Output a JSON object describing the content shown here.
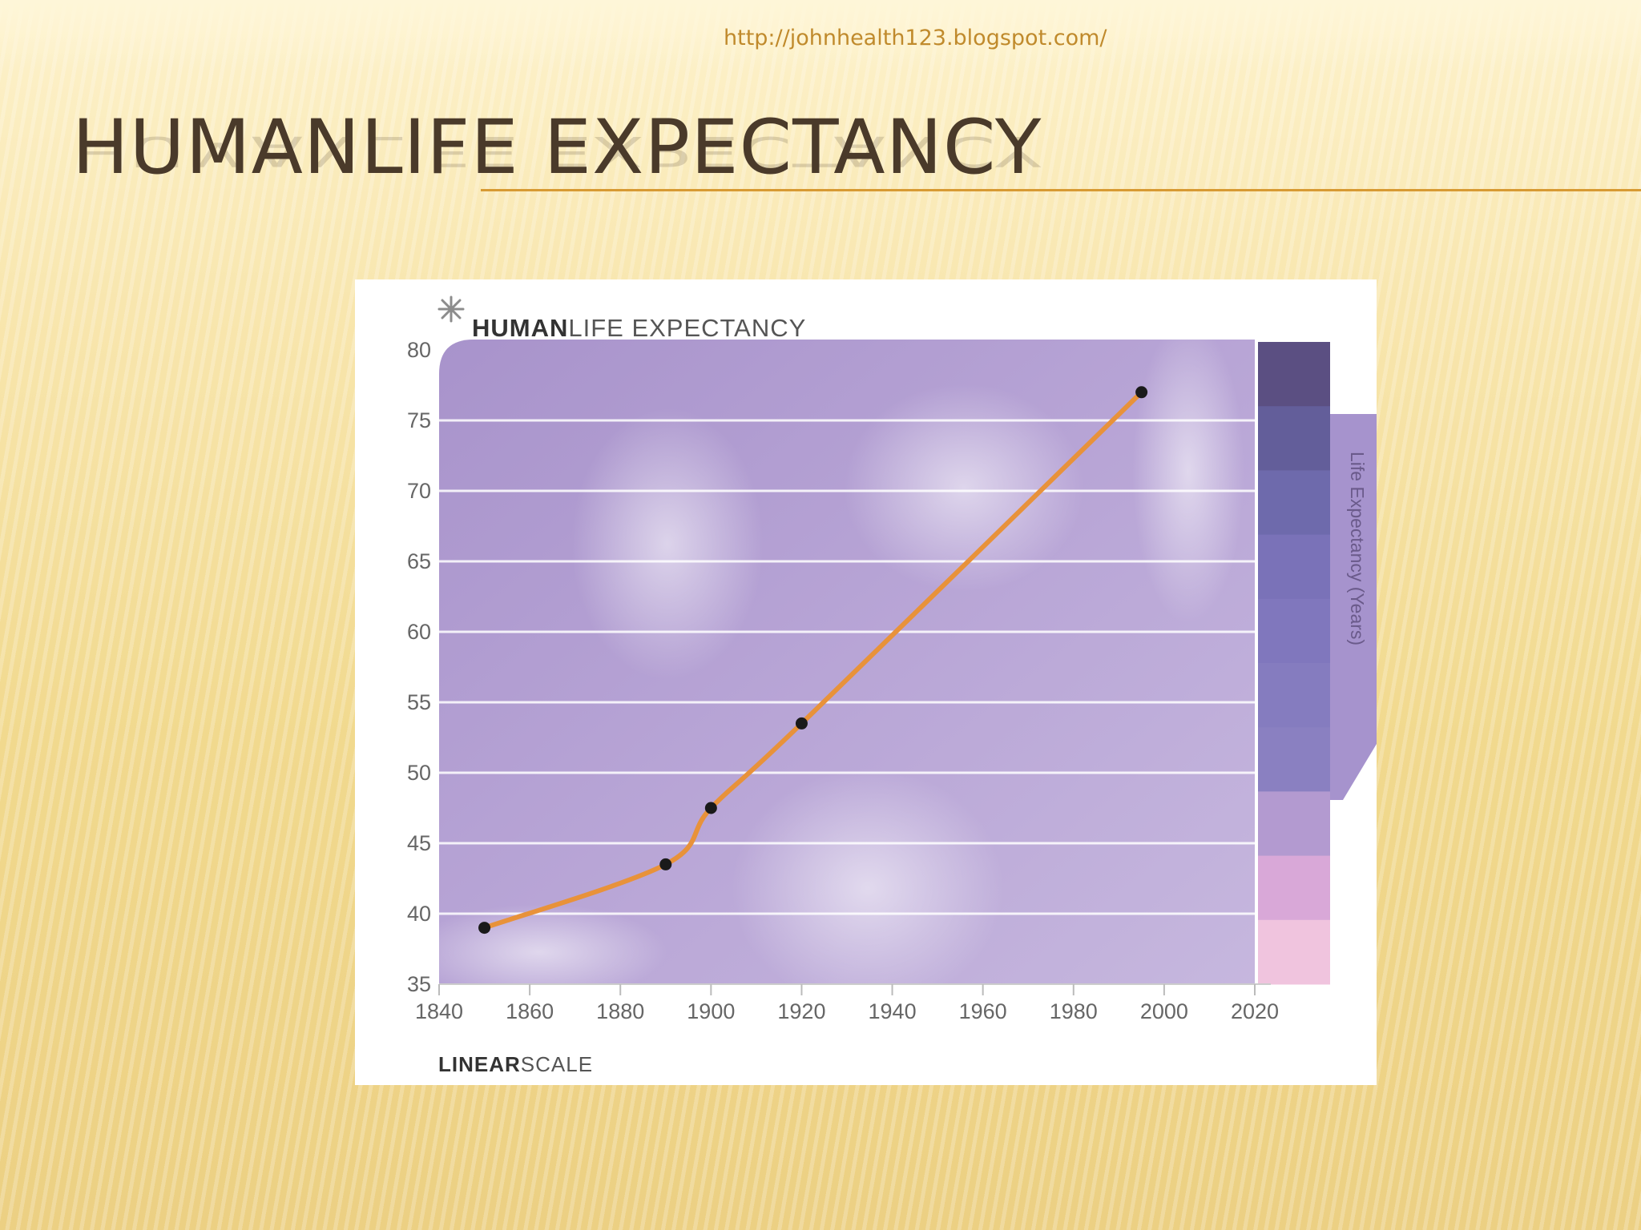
{
  "header": {
    "url": "http://johnhealth123.blogspot.com/",
    "title": "HUMANLIFE EXPECTANCY"
  },
  "colors": {
    "accent": "#d79a33",
    "line": "#e8923a",
    "plot_bg": "#b39fd0",
    "point": "#1a1a1a"
  },
  "chart_data": {
    "type": "line",
    "title_bold": "HUMAN",
    "title_light": "LIFE EXPECTANCY",
    "footer_bold": "LINEAR",
    "footer_light": "SCALE",
    "ylabel": "Life Expectancy (Years)",
    "xlim": [
      1840,
      2020
    ],
    "ylim": [
      35,
      80
    ],
    "x_ticks": [
      1840,
      1860,
      1880,
      1900,
      1920,
      1940,
      1960,
      1980,
      2000,
      2020
    ],
    "y_ticks": [
      35,
      40,
      45,
      50,
      55,
      60,
      65,
      70,
      75,
      80
    ],
    "grid": true,
    "series": [
      {
        "x": [
          1850,
          1890,
          1900,
          1920,
          1995
        ],
        "y": [
          39,
          43.5,
          47.5,
          53.5,
          77
        ]
      }
    ],
    "color_scale": [
      "#5b4f82",
      "#635e9a",
      "#6e6aac",
      "#7a72b8",
      "#8077bd",
      "#857cbf",
      "#8a80c1",
      "#b39ad0",
      "#d9a8d8",
      "#f0c4de"
    ]
  }
}
